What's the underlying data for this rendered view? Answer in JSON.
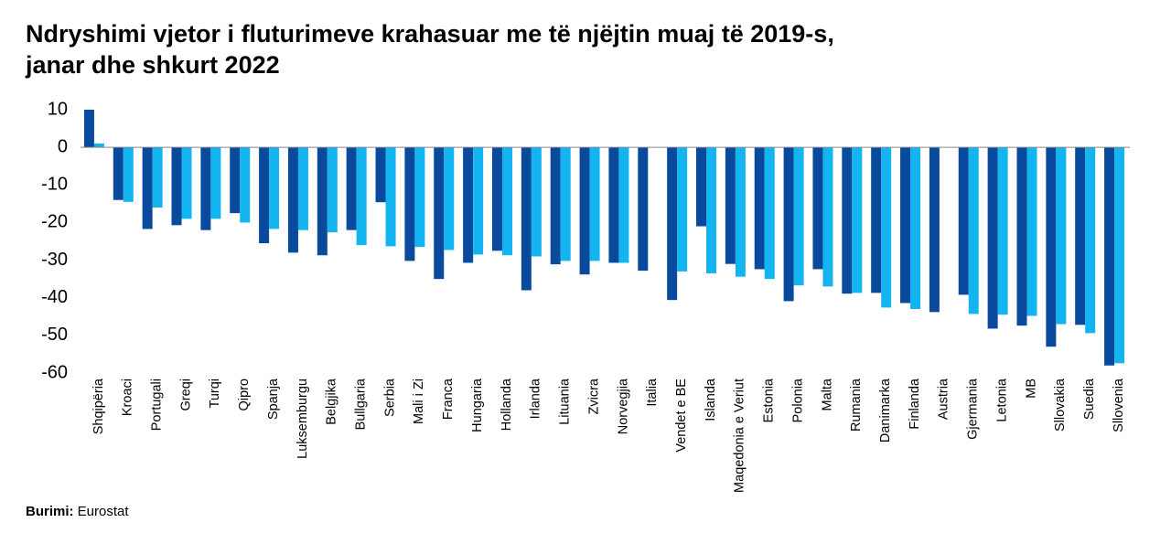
{
  "chart_data": {
    "type": "bar",
    "title": [
      "Ndryshimi vjetor i fluturimeve krahasuar me të njëjtin muaj të 2019-s,",
      "janar dhe shkurt 2022"
    ],
    "source_label": "Burimi:",
    "source": "Eurostat",
    "categories": [
      "Shqipëria",
      "Kroaci",
      "Portugali",
      "Greqi",
      "Turqi",
      "Qipro",
      "Spanja",
      "Luksemburgu",
      "Belgjika",
      "Bullgaria",
      "Serbia",
      "Mali i Zi",
      "Franca",
      "Hungaria",
      "Hollanda",
      "Irlanda",
      "Lituania",
      "Zvicra",
      "Norvegjia",
      "Italia",
      "Vendet e BE",
      "Islanda",
      "Maqedonia e Veriut",
      "Estonia",
      "Polonia",
      "Malta",
      "Rumania",
      "Danimarka",
      "Finlanda",
      "Austria",
      "Gjermania",
      "Letonia",
      "MB",
      "Sllovakia",
      "Suedia",
      "Sllovenia"
    ],
    "series": [
      {
        "color": "#0a4a9c",
        "values": [
          10,
          -14,
          -21.7,
          -20.7,
          -22,
          -17.5,
          -25.5,
          -28,
          -28.7,
          -22,
          -14.6,
          -30.2,
          -35,
          -30.7,
          -27.5,
          -38,
          -31.1,
          -33.8,
          -30.7,
          -32.8,
          -40.6,
          -21,
          -31,
          -32.4,
          -40.9,
          -32.4,
          -38.9,
          -38.7,
          -41.4,
          -43.8,
          -39.2,
          -48.2,
          -47.4,
          -53,
          -47.2,
          -58
        ]
      },
      {
        "color": "#14b4f0",
        "values": [
          1,
          -14.5,
          -16,
          -19,
          -19,
          -20,
          -21.7,
          -22,
          -22.6,
          -26,
          -26.3,
          -26.5,
          -27.3,
          -28.5,
          -28.7,
          -29,
          -30.2,
          -30.2,
          -30.7,
          null,
          -33,
          -33.5,
          -34.4,
          -35,
          -36.7,
          -37,
          -38.7,
          -42.6,
          -43,
          null,
          -44.3,
          -44.5,
          -44.8,
          -47,
          -49.4,
          -57.4
        ]
      }
    ],
    "ylim": [
      -60,
      10
    ],
    "yticks": [
      10,
      0,
      -10,
      -20,
      -30,
      -40,
      -50,
      -60
    ],
    "grid": false
  }
}
